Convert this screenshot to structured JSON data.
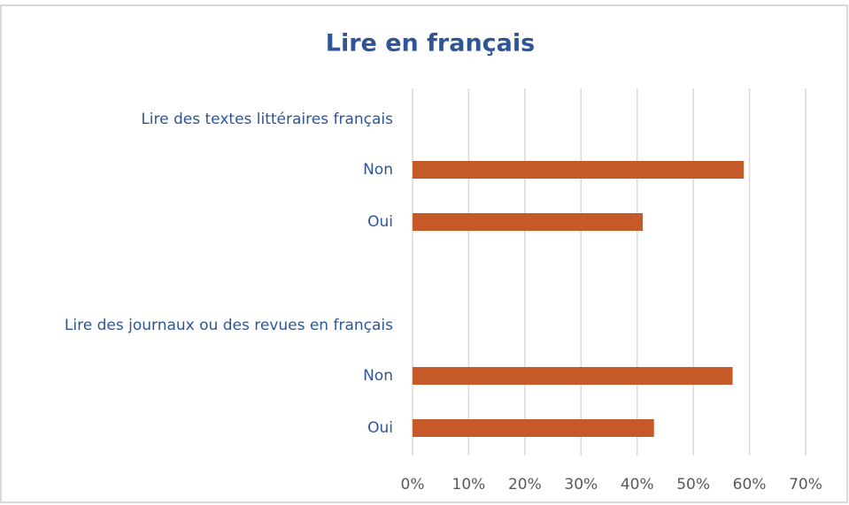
{
  "chart_data": {
    "type": "bar",
    "orientation": "horizontal",
    "title": "Lire en français",
    "groups": [
      {
        "name": "Lire des textes littéraires français",
        "categories": [
          "Non",
          "Oui"
        ],
        "values": [
          59,
          41
        ]
      },
      {
        "name": "Lire des journaux ou des revues en français",
        "categories": [
          "Non",
          "Oui"
        ],
        "values": [
          57,
          43
        ]
      }
    ],
    "color": "#c55a28",
    "xlim": [
      0,
      70
    ],
    "xticks": [
      {
        "value": 0,
        "label": "0%"
      },
      {
        "value": 10,
        "label": "10%"
      },
      {
        "value": 20,
        "label": "20%"
      },
      {
        "value": 30,
        "label": "30%"
      },
      {
        "value": 40,
        "label": "40%"
      },
      {
        "value": 50,
        "label": "50%"
      },
      {
        "value": 60,
        "label": "60%"
      },
      {
        "value": 70,
        "label": "70%"
      }
    ],
    "grid": true
  }
}
